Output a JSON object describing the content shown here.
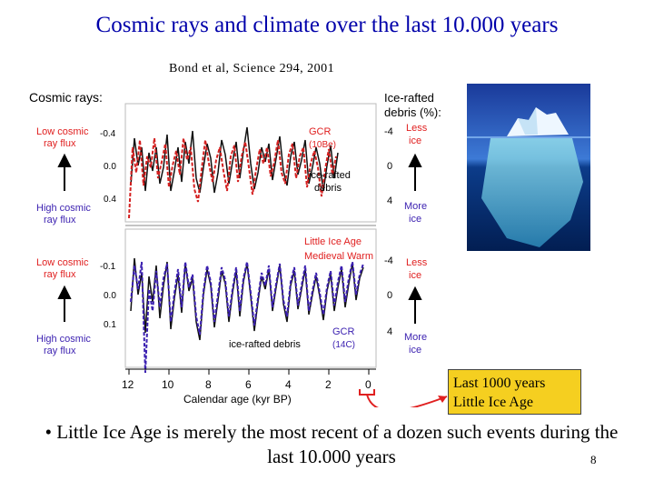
{
  "slide": {
    "title": "Cosmic rays and climate over the last 10.000 years",
    "citation": "Bond et al, Science 294, 2001",
    "callout": {
      "line1": "Last 1000 years",
      "line2": "Little Ice Age"
    },
    "bullet": "• Little Ice Age is merely the most recent of a dozen such events during the last 10.000 years",
    "slide_number": "8"
  },
  "figure": {
    "left_header": "Cosmic rays:",
    "right_header_line1": "Ice-rafted",
    "right_header_line2": "debris (%):",
    "low_flux_line1": "Low cosmic",
    "low_flux_line2": "ray flux",
    "high_flux_line1": "High cosmic",
    "high_flux_line2": "ray flux",
    "less_ice_line1": "Less",
    "less_ice_line2": "ice",
    "more_ice_line1": "More",
    "more_ice_line2": "ice",
    "top_panel": {
      "left_ticks": [
        "-0.4",
        "0.0",
        "0.4"
      ],
      "right_ticks": [
        "-4",
        "0",
        "4"
      ],
      "gcr_label_line1": "GCR",
      "gcr_label_line2": "(10Be)",
      "debris_label_line1": "ice-rafted",
      "debris_label_line2": "debris"
    },
    "bottom_panel": {
      "left_ticks": [
        "-0.1",
        "0.0",
        "0.1"
      ],
      "right_ticks": [
        "-4",
        "0",
        "4"
      ],
      "little_ice_age": "Little Ice Age",
      "medieval_warm": "Medieval Warm",
      "debris_label": "ice-rafted debris",
      "gcr_label_line1": "GCR",
      "gcr_label_line2": "(14C)"
    },
    "x_ticks": [
      "12",
      "10",
      "8",
      "6",
      "4",
      "2",
      "0"
    ],
    "x_label": "Calendar age (kyr BP)",
    "colors": {
      "gcr_top": "#d42020",
      "gcr_bottom": "#3a1fb0",
      "debris": "#111111",
      "red_label": "#e02020",
      "blue_label": "#3a1fb0"
    }
  }
}
